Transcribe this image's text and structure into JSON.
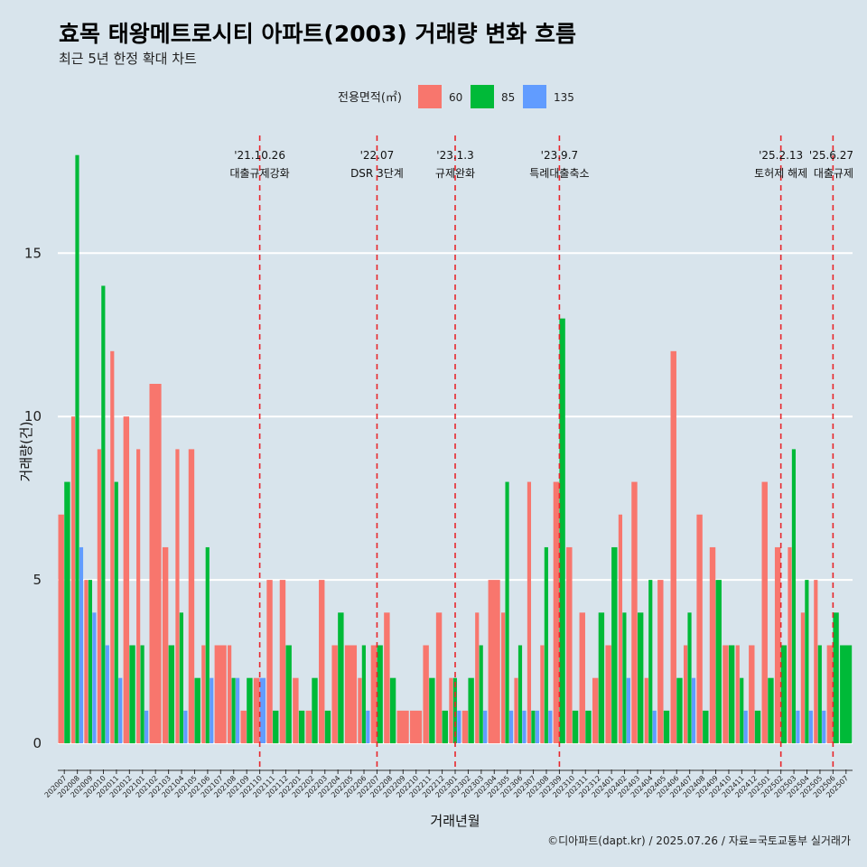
{
  "title": "효목 태왕메트로시티 아파트(2003) 거래량 변화 흐름",
  "subtitle": "최근 5년 한정 확대 차트",
  "caption": "©디아파트(dapt.kr) / 2025.07.26 / 자료=국토교통부 실거래가",
  "chart_data": {
    "type": "bar",
    "xlabel": "거래년월",
    "ylabel": "거래량(건)",
    "ylim": [
      -0.8,
      18.6
    ],
    "y_ticks": [
      0,
      5,
      10,
      15
    ],
    "legend": {
      "title": "전용면적(㎡)",
      "position": "top"
    },
    "categories": [
      "202007",
      "202008",
      "202009",
      "202010",
      "202011",
      "202012",
      "202101",
      "202102",
      "202103",
      "202104",
      "202105",
      "202106",
      "202107",
      "202108",
      "202109",
      "202110",
      "202111",
      "202112",
      "202201",
      "202202",
      "202203",
      "202204",
      "202205",
      "202206",
      "202207",
      "202208",
      "202209",
      "202210",
      "202211",
      "202212",
      "202301",
      "202302",
      "202303",
      "202304",
      "202305",
      "202306",
      "202307",
      "202308",
      "202309",
      "202310",
      "202311",
      "202312",
      "202401",
      "202402",
      "202403",
      "202404",
      "202405",
      "202406",
      "202407",
      "202408",
      "202409",
      "202410",
      "202411",
      "202412",
      "202501",
      "202502",
      "202503",
      "202504",
      "202505",
      "202506",
      "202507"
    ],
    "series": [
      {
        "name": "60",
        "color": "#F8766D",
        "values": [
          7,
          10,
          5,
          9,
          12,
          10,
          9,
          11,
          6,
          9,
          9,
          3,
          3,
          3,
          1,
          2,
          5,
          5,
          2,
          1,
          5,
          3,
          3,
          2,
          3,
          4,
          1,
          1,
          3,
          4,
          2,
          1,
          4,
          5,
          4,
          2,
          8,
          3,
          8,
          6,
          4,
          2,
          3,
          7,
          8,
          2,
          5,
          12,
          3,
          7,
          6,
          3,
          3,
          3,
          8,
          6,
          6,
          4,
          5,
          3,
          null
        ]
      },
      {
        "name": "85",
        "color": "#00BA38",
        "values": [
          8,
          18,
          5,
          14,
          8,
          3,
          3,
          null,
          3,
          4,
          2,
          6,
          null,
          2,
          2,
          null,
          1,
          3,
          1,
          2,
          1,
          4,
          null,
          3,
          3,
          2,
          null,
          null,
          2,
          1,
          2,
          2,
          3,
          null,
          8,
          3,
          1,
          6,
          13,
          1,
          1,
          4,
          6,
          4,
          4,
          5,
          1,
          2,
          4,
          1,
          5,
          3,
          2,
          1,
          2,
          3,
          9,
          5,
          3,
          4,
          3
        ]
      },
      {
        "name": "135",
        "color": "#619CFF",
        "values": [
          null,
          6,
          4,
          3,
          2,
          null,
          1,
          null,
          null,
          1,
          null,
          2,
          null,
          2,
          null,
          2,
          null,
          null,
          null,
          null,
          null,
          null,
          null,
          1,
          null,
          null,
          null,
          null,
          null,
          null,
          1,
          null,
          1,
          null,
          1,
          1,
          1,
          1,
          null,
          null,
          null,
          null,
          null,
          2,
          null,
          1,
          null,
          null,
          2,
          null,
          null,
          null,
          1,
          null,
          null,
          null,
          1,
          1,
          1,
          null,
          null
        ]
      }
    ],
    "events": [
      {
        "date": "'21.10.26",
        "label": "대출규제강화",
        "at": "202110"
      },
      {
        "date": "'22.07",
        "label": "DSR 3단계",
        "at": "202207"
      },
      {
        "date": "'23.1.3",
        "label": "규제완화",
        "at": "202301"
      },
      {
        "date": "'23.9.7",
        "label": "특례대출축소",
        "at": "202309"
      },
      {
        "date": "'25.2.13",
        "label": "토허제 해제",
        "at": "202502"
      },
      {
        "date": "'25.6.27",
        "label": "대출규제",
        "at": "202506"
      }
    ],
    "grid": true
  }
}
